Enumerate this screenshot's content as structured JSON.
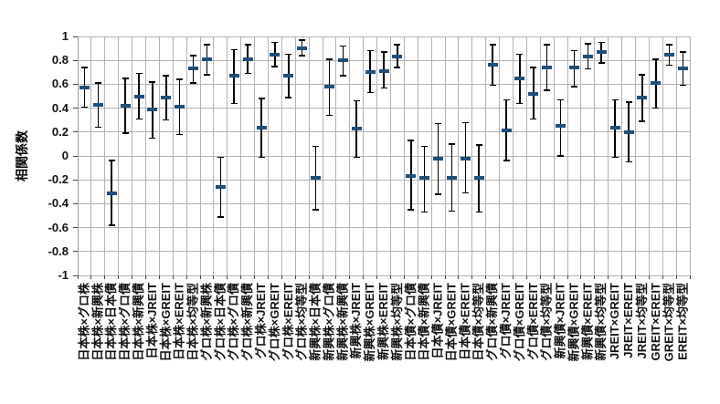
{
  "page": {
    "background": "#ffffff",
    "title": ""
  },
  "chart_data": {
    "type": "scatter",
    "subtype": "mean-with-error-bars",
    "title": "",
    "xlabel": "",
    "ylabel": "相関係数",
    "ylim": [
      -1,
      1
    ],
    "ytick_labels": [
      "1",
      "0.8",
      "0.6",
      "0.4",
      "0.2",
      "0",
      "-0.2",
      "-0.4",
      "-0.6",
      "-0.8",
      "-1"
    ],
    "grid": true,
    "legend_position": "none",
    "categories": [
      "日本株×グロ株",
      "日本株×新興株",
      "日本株×日本債",
      "日本株×グロ債",
      "日本株×新興債",
      "日本株×JREIT",
      "日本株×GREIT",
      "日本株×EREIT",
      "日本株×均等型",
      "グロ株×新興株",
      "グロ株×日本債",
      "グロ株×グロ債",
      "グロ株×新興債",
      "グロ株×JREIT",
      "グロ株×GREIT",
      "グロ株×EREIT",
      "グロ株×均等型",
      "新興株×日本債",
      "新興株×グロ債",
      "新興株×新興債",
      "新興株×JREIT",
      "新興株×GREIT",
      "新興株×EREIT",
      "新興株×均等型",
      "日本債×グロ債",
      "日本債×新興債",
      "日本債×JREIT",
      "日本債×GREIT",
      "日本債×EREIT",
      "日本債×均等型",
      "グロ債×新興債",
      "グロ債×JREIT",
      "グロ債×GREIT",
      "グロ債×EREIT",
      "グロ債×均等型",
      "新興債×JREIT",
      "新興債×GREIT",
      "新興債×EREIT",
      "新興債×均等型",
      "JREIT×GREIT",
      "JREIT×EREIT",
      "JREIT×均等型",
      "GREIT×EREIT",
      "GREIT×均等型",
      "EREIT×均等型"
    ],
    "series": [
      {
        "name": "相関係数",
        "values": [
          0.57,
          0.43,
          -0.31,
          0.42,
          0.5,
          0.39,
          0.49,
          0.41,
          0.73,
          0.81,
          -0.26,
          0.67,
          0.81,
          0.24,
          0.85,
          0.67,
          0.9,
          -0.18,
          0.58,
          0.8,
          0.23,
          0.7,
          0.71,
          0.83,
          -0.17,
          -0.18,
          -0.02,
          -0.18,
          -0.02,
          -0.18,
          0.76,
          0.21,
          0.65,
          0.52,
          0.74,
          0.25,
          0.74,
          0.83,
          0.87,
          0.24,
          0.2,
          0.49,
          0.61,
          0.85,
          0.73
        ],
        "error_low": [
          0.41,
          0.24,
          -0.58,
          0.19,
          0.31,
          0.15,
          0.3,
          0.18,
          0.61,
          0.68,
          -0.51,
          0.44,
          0.69,
          -0.01,
          0.75,
          0.49,
          0.84,
          -0.45,
          0.34,
          0.67,
          -0.01,
          0.53,
          0.57,
          0.74,
          -0.45,
          -0.47,
          -0.32,
          -0.46,
          -0.31,
          -0.47,
          0.59,
          -0.04,
          0.44,
          0.31,
          0.55,
          0.0,
          0.58,
          0.73,
          0.78,
          -0.01,
          -0.05,
          0.29,
          0.4,
          0.76,
          0.59
        ],
        "error_high": [
          0.74,
          0.61,
          -0.04,
          0.65,
          0.69,
          0.62,
          0.67,
          0.64,
          0.84,
          0.93,
          -0.01,
          0.89,
          0.93,
          0.48,
          0.95,
          0.85,
          0.97,
          0.08,
          0.81,
          0.92,
          0.46,
          0.88,
          0.87,
          0.93,
          0.13,
          0.08,
          0.27,
          0.1,
          0.28,
          0.09,
          0.93,
          0.47,
          0.85,
          0.74,
          0.93,
          0.47,
          0.88,
          0.94,
          0.95,
          0.47,
          0.45,
          0.68,
          0.81,
          0.93,
          0.87
        ]
      }
    ],
    "colors": {
      "marker": "#1f4e79",
      "whisker": "#000000",
      "grid": "#b3b3b3",
      "axis": "#999999",
      "tick": "#444444",
      "text": "#111111"
    }
  }
}
